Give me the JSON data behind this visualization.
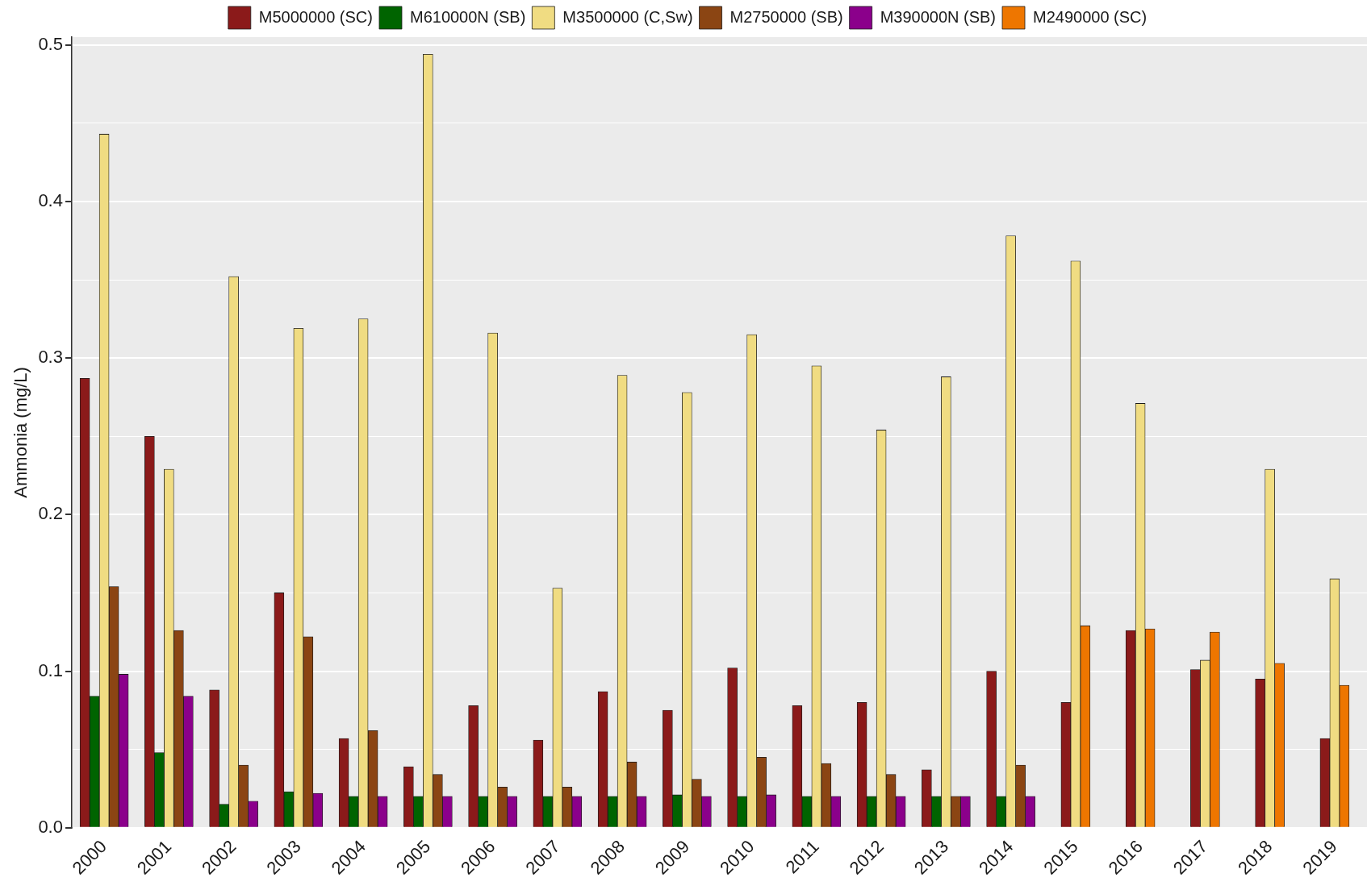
{
  "chart_data": {
    "type": "bar",
    "ylabel": "Ammonia (mg/L)",
    "categories": [
      "2000",
      "2001",
      "2002",
      "2003",
      "2004",
      "2005",
      "2006",
      "2007",
      "2008",
      "2009",
      "2010",
      "2011",
      "2012",
      "2013",
      "2014",
      "2015",
      "2016",
      "2017",
      "2018",
      "2019"
    ],
    "series": [
      {
        "name": "M5000000 (SC)",
        "color": "#8b1a1a",
        "values": [
          0.287,
          0.25,
          0.088,
          0.15,
          0.057,
          0.039,
          0.078,
          0.056,
          0.087,
          0.075,
          0.102,
          0.078,
          0.08,
          0.037,
          0.1,
          0.08,
          0.126,
          0.101,
          0.095,
          0.057
        ]
      },
      {
        "name": "M610000N (SB)",
        "color": "#006400",
        "values": [
          0.084,
          0.048,
          0.015,
          0.023,
          0.02,
          0.02,
          0.02,
          0.02,
          0.02,
          0.021,
          0.02,
          0.02,
          0.02,
          0.02,
          0.02,
          null,
          null,
          null,
          null,
          null
        ]
      },
      {
        "name": "M3500000 (C,Sw)",
        "color": "#f0dc82",
        "values": [
          0.443,
          0.229,
          0.352,
          0.319,
          0.325,
          0.494,
          0.316,
          0.153,
          0.289,
          0.278,
          0.315,
          0.295,
          0.254,
          0.288,
          0.378,
          0.362,
          0.271,
          0.107,
          0.229,
          0.159
        ]
      },
      {
        "name": "M2750000 (SB)",
        "color": "#8b4513",
        "values": [
          0.154,
          0.126,
          0.04,
          0.122,
          0.062,
          0.034,
          0.026,
          0.026,
          0.042,
          0.031,
          0.045,
          0.041,
          0.034,
          0.02,
          0.04,
          null,
          null,
          null,
          null,
          null
        ]
      },
      {
        "name": "M390000N (SB)",
        "color": "#8b008b",
        "values": [
          0.098,
          0.084,
          0.017,
          0.022,
          0.02,
          0.02,
          0.02,
          0.02,
          0.02,
          0.02,
          0.021,
          0.02,
          0.02,
          0.02,
          0.02,
          null,
          null,
          null,
          null,
          null
        ]
      },
      {
        "name": "M2490000 (SC)",
        "color": "#ee7600",
        "values": [
          null,
          null,
          null,
          null,
          null,
          null,
          null,
          null,
          null,
          null,
          null,
          null,
          null,
          null,
          null,
          0.129,
          0.127,
          0.125,
          0.105,
          0.091
        ]
      }
    ],
    "ylim": [
      0,
      0.505
    ],
    "yticks": [
      {
        "value": 0,
        "label": "0.0"
      },
      {
        "value": 0.05,
        "label": null
      },
      {
        "value": 0.1,
        "label": "0.1"
      },
      {
        "value": 0.15,
        "label": null
      },
      {
        "value": 0.2,
        "label": "0.2"
      },
      {
        "value": 0.25,
        "label": null
      },
      {
        "value": 0.3,
        "label": "0.3"
      },
      {
        "value": 0.35,
        "label": null
      },
      {
        "value": 0.4,
        "label": "0.4"
      },
      {
        "value": 0.45,
        "label": null
      },
      {
        "value": 0.5,
        "label": "0.5"
      }
    ],
    "grid": "y",
    "legend": "top"
  }
}
